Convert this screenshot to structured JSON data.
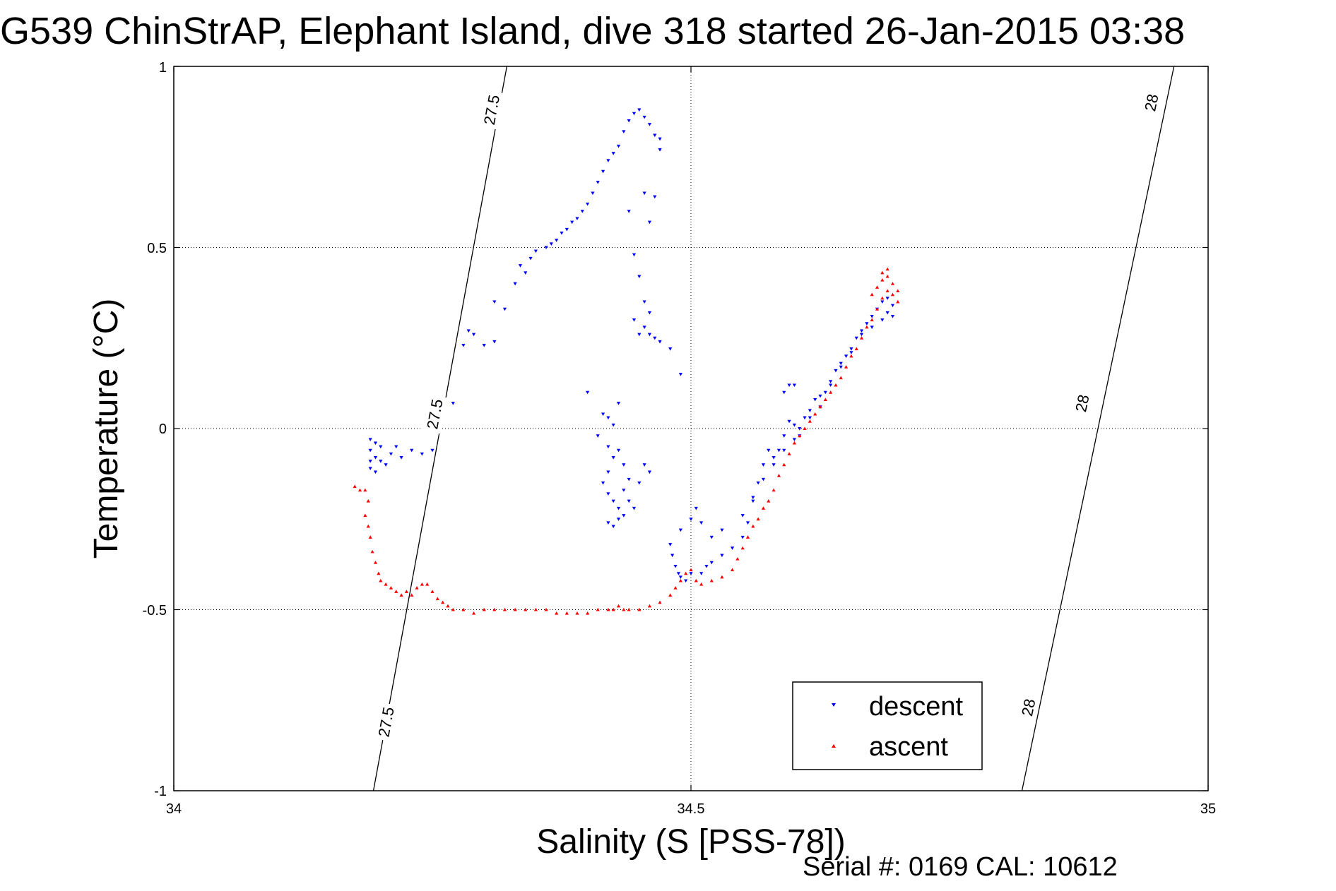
{
  "chart_data": {
    "type": "scatter",
    "title": "G539 ChinStrAP, Elephant Island, dive 318 started 26-Jan-2015 03:38",
    "xlabel": "Salinity (S [PSS-78])",
    "ylabel": "Temperature (°C)",
    "xlim": [
      34,
      35
    ],
    "ylim": [
      -1,
      1
    ],
    "xticks": [
      "34",
      "34.5",
      "35"
    ],
    "yticks": [
      "-1",
      "-0.5",
      "0",
      "0.5",
      "1"
    ],
    "grid": true,
    "legend_position": "bottom-right",
    "footer": "Serial #: 0169 CAL: 10612",
    "isopycnals": [
      {
        "label": "27.5",
        "color": "#000000",
        "line": [
          [
            34.193,
            -1.0
          ],
          [
            34.322,
            1.0
          ]
        ]
      },
      {
        "label": "28",
        "color": "#000000",
        "line": [
          [
            34.82,
            -1.0
          ],
          [
            34.967,
            1.0
          ]
        ]
      }
    ],
    "isopycnal_label_positions": [
      {
        "label": "27.5",
        "x": 34.307,
        "y": 0.88
      },
      {
        "label": "27.5",
        "x": 34.252,
        "y": 0.04
      },
      {
        "label": "27.5",
        "x": 34.205,
        "y": -0.81
      },
      {
        "label": "28",
        "x": 34.945,
        "y": 0.9
      },
      {
        "label": "28",
        "x": 34.878,
        "y": 0.07
      },
      {
        "label": "28",
        "x": 34.826,
        "y": -0.77
      }
    ],
    "series": [
      {
        "name": "descent",
        "color": "#0000ff",
        "marker": "triangle-down",
        "points": [
          [
            34.19,
            -0.03
          ],
          [
            34.19,
            -0.06
          ],
          [
            34.19,
            -0.09
          ],
          [
            34.19,
            -0.11
          ],
          [
            34.195,
            -0.04
          ],
          [
            34.195,
            -0.08
          ],
          [
            34.195,
            -0.12
          ],
          [
            34.2,
            -0.05
          ],
          [
            34.2,
            -0.09
          ],
          [
            34.205,
            -0.1
          ],
          [
            34.21,
            -0.07
          ],
          [
            34.215,
            -0.05
          ],
          [
            34.22,
            -0.08
          ],
          [
            34.23,
            -0.06
          ],
          [
            34.24,
            -0.07
          ],
          [
            34.25,
            -0.06
          ],
          [
            34.27,
            0.07
          ],
          [
            34.28,
            0.23
          ],
          [
            34.285,
            0.27
          ],
          [
            34.29,
            0.26
          ],
          [
            34.3,
            0.23
          ],
          [
            34.31,
            0.24
          ],
          [
            34.31,
            0.35
          ],
          [
            34.32,
            0.33
          ],
          [
            34.33,
            0.4
          ],
          [
            34.335,
            0.45
          ],
          [
            34.34,
            0.43
          ],
          [
            34.345,
            0.47
          ],
          [
            34.35,
            0.49
          ],
          [
            34.36,
            0.5
          ],
          [
            34.365,
            0.51
          ],
          [
            34.37,
            0.52
          ],
          [
            34.375,
            0.54
          ],
          [
            34.38,
            0.55
          ],
          [
            34.385,
            0.57
          ],
          [
            34.39,
            0.58
          ],
          [
            34.395,
            0.6
          ],
          [
            34.4,
            0.62
          ],
          [
            34.405,
            0.65
          ],
          [
            34.41,
            0.68
          ],
          [
            34.415,
            0.71
          ],
          [
            34.42,
            0.74
          ],
          [
            34.425,
            0.76
          ],
          [
            34.43,
            0.78
          ],
          [
            34.435,
            0.82
          ],
          [
            34.44,
            0.85
          ],
          [
            34.445,
            0.87
          ],
          [
            34.45,
            0.88
          ],
          [
            34.455,
            0.86
          ],
          [
            34.46,
            0.84
          ],
          [
            34.465,
            0.81
          ],
          [
            34.47,
            0.8
          ],
          [
            34.47,
            0.77
          ],
          [
            34.465,
            0.64
          ],
          [
            34.455,
            0.65
          ],
          [
            34.46,
            0.57
          ],
          [
            34.44,
            0.6
          ],
          [
            34.445,
            0.48
          ],
          [
            34.45,
            0.42
          ],
          [
            34.455,
            0.35
          ],
          [
            34.46,
            0.32
          ],
          [
            34.445,
            0.3
          ],
          [
            34.45,
            0.26
          ],
          [
            34.455,
            0.28
          ],
          [
            34.46,
            0.26
          ],
          [
            34.465,
            0.25
          ],
          [
            34.47,
            0.24
          ],
          [
            34.48,
            0.22
          ],
          [
            34.49,
            0.15
          ],
          [
            34.4,
            0.1
          ],
          [
            34.41,
            -0.02
          ],
          [
            34.415,
            0.04
          ],
          [
            34.42,
            0.03
          ],
          [
            34.425,
            0.01
          ],
          [
            34.43,
            0.07
          ],
          [
            34.42,
            -0.05
          ],
          [
            34.425,
            -0.08
          ],
          [
            34.43,
            -0.06
          ],
          [
            34.435,
            -0.1
          ],
          [
            34.42,
            -0.12
          ],
          [
            34.415,
            -0.15
          ],
          [
            34.42,
            -0.18
          ],
          [
            34.425,
            -0.2
          ],
          [
            34.43,
            -0.22
          ],
          [
            34.435,
            -0.17
          ],
          [
            34.44,
            -0.14
          ],
          [
            34.44,
            -0.2
          ],
          [
            34.445,
            -0.22
          ],
          [
            34.43,
            -0.25
          ],
          [
            34.425,
            -0.27
          ],
          [
            34.42,
            -0.26
          ],
          [
            34.435,
            -0.24
          ],
          [
            34.45,
            -0.15
          ],
          [
            34.455,
            -0.1
          ],
          [
            34.46,
            -0.12
          ],
          [
            34.48,
            -0.32
          ],
          [
            34.482,
            -0.35
          ],
          [
            34.485,
            -0.38
          ],
          [
            34.488,
            -0.4
          ],
          [
            34.49,
            -0.41
          ],
          [
            34.495,
            -0.42
          ],
          [
            34.5,
            -0.4
          ],
          [
            34.49,
            -0.28
          ],
          [
            34.5,
            -0.25
          ],
          [
            34.505,
            -0.22
          ],
          [
            34.51,
            -0.26
          ],
          [
            34.52,
            -0.3
          ],
          [
            34.53,
            -0.28
          ],
          [
            34.51,
            -0.4
          ],
          [
            34.515,
            -0.38
          ],
          [
            34.52,
            -0.37
          ],
          [
            34.53,
            -0.35
          ],
          [
            34.54,
            -0.33
          ],
          [
            34.55,
            -0.3
          ],
          [
            34.555,
            -0.26
          ],
          [
            34.56,
            -0.2
          ],
          [
            34.565,
            -0.15
          ],
          [
            34.57,
            -0.1
          ],
          [
            34.575,
            -0.06
          ],
          [
            34.58,
            -0.08
          ],
          [
            34.585,
            -0.06
          ],
          [
            34.59,
            -0.02
          ],
          [
            34.595,
            0.02
          ],
          [
            34.6,
            0.01
          ],
          [
            34.605,
            -0.02
          ],
          [
            34.61,
            0.03
          ],
          [
            34.615,
            0.05
          ],
          [
            34.59,
            0.1
          ],
          [
            34.595,
            0.12
          ],
          [
            34.6,
            0.12
          ],
          [
            34.62,
            0.08
          ],
          [
            34.625,
            0.09
          ],
          [
            34.63,
            0.1
          ],
          [
            34.635,
            0.13
          ],
          [
            34.64,
            0.16
          ],
          [
            34.645,
            0.18
          ],
          [
            34.65,
            0.2
          ],
          [
            34.655,
            0.22
          ],
          [
            34.66,
            0.25
          ],
          [
            34.665,
            0.27
          ],
          [
            34.67,
            0.29
          ],
          [
            34.675,
            0.31
          ],
          [
            34.68,
            0.33
          ],
          [
            34.685,
            0.35
          ],
          [
            34.69,
            0.36
          ],
          [
            34.695,
            0.34
          ],
          [
            34.69,
            0.32
          ],
          [
            34.695,
            0.31
          ],
          [
            34.685,
            0.3
          ],
          [
            34.675,
            0.28
          ],
          [
            34.665,
            0.26
          ],
          [
            34.655,
            0.21
          ],
          [
            34.645,
            0.17
          ],
          [
            34.635,
            0.12
          ],
          [
            34.625,
            0.06
          ],
          [
            34.615,
            0.03
          ],
          [
            34.605,
            0.0
          ],
          [
            34.6,
            -0.03
          ],
          [
            34.59,
            -0.06
          ],
          [
            34.58,
            -0.1
          ],
          [
            34.57,
            -0.14
          ],
          [
            34.56,
            -0.19
          ],
          [
            34.55,
            -0.24
          ]
        ]
      },
      {
        "name": "ascent",
        "color": "#ff0000",
        "marker": "triangle-up",
        "points": [
          [
            34.175,
            -0.16
          ],
          [
            34.18,
            -0.17
          ],
          [
            34.185,
            -0.17
          ],
          [
            34.188,
            -0.2
          ],
          [
            34.185,
            -0.24
          ],
          [
            34.188,
            -0.27
          ],
          [
            34.19,
            -0.3
          ],
          [
            34.192,
            -0.34
          ],
          [
            34.195,
            -0.37
          ],
          [
            34.198,
            -0.4
          ],
          [
            34.2,
            -0.42
          ],
          [
            34.205,
            -0.43
          ],
          [
            34.21,
            -0.44
          ],
          [
            34.215,
            -0.45
          ],
          [
            34.22,
            -0.46
          ],
          [
            34.225,
            -0.45
          ],
          [
            34.23,
            -0.46
          ],
          [
            34.235,
            -0.44
          ],
          [
            34.24,
            -0.43
          ],
          [
            34.245,
            -0.43
          ],
          [
            34.25,
            -0.45
          ],
          [
            34.255,
            -0.47
          ],
          [
            34.26,
            -0.48
          ],
          [
            34.265,
            -0.49
          ],
          [
            34.27,
            -0.5
          ],
          [
            34.28,
            -0.5
          ],
          [
            34.29,
            -0.51
          ],
          [
            34.3,
            -0.5
          ],
          [
            34.31,
            -0.5
          ],
          [
            34.32,
            -0.5
          ],
          [
            34.33,
            -0.5
          ],
          [
            34.34,
            -0.5
          ],
          [
            34.35,
            -0.5
          ],
          [
            34.36,
            -0.5
          ],
          [
            34.37,
            -0.51
          ],
          [
            34.38,
            -0.51
          ],
          [
            34.39,
            -0.51
          ],
          [
            34.4,
            -0.51
          ],
          [
            34.41,
            -0.5
          ],
          [
            34.42,
            -0.5
          ],
          [
            34.425,
            -0.5
          ],
          [
            34.43,
            -0.49
          ],
          [
            34.435,
            -0.5
          ],
          [
            34.44,
            -0.5
          ],
          [
            34.45,
            -0.5
          ],
          [
            34.46,
            -0.49
          ],
          [
            34.47,
            -0.48
          ],
          [
            34.48,
            -0.46
          ],
          [
            34.485,
            -0.44
          ],
          [
            34.49,
            -0.42
          ],
          [
            34.495,
            -0.4
          ],
          [
            34.5,
            -0.39
          ],
          [
            34.505,
            -0.42
          ],
          [
            34.51,
            -0.43
          ],
          [
            34.52,
            -0.42
          ],
          [
            34.53,
            -0.41
          ],
          [
            34.54,
            -0.39
          ],
          [
            34.545,
            -0.36
          ],
          [
            34.55,
            -0.33
          ],
          [
            34.555,
            -0.3
          ],
          [
            34.56,
            -0.27
          ],
          [
            34.565,
            -0.25
          ],
          [
            34.57,
            -0.22
          ],
          [
            34.575,
            -0.2
          ],
          [
            34.58,
            -0.17
          ],
          [
            34.585,
            -0.13
          ],
          [
            34.59,
            -0.1
          ],
          [
            34.595,
            -0.07
          ],
          [
            34.6,
            -0.04
          ],
          [
            34.605,
            -0.02
          ],
          [
            34.61,
            0.0
          ],
          [
            34.615,
            0.02
          ],
          [
            34.62,
            0.04
          ],
          [
            34.625,
            0.06
          ],
          [
            34.63,
            0.08
          ],
          [
            34.635,
            0.1
          ],
          [
            34.64,
            0.12
          ],
          [
            34.645,
            0.14
          ],
          [
            34.65,
            0.17
          ],
          [
            34.655,
            0.2
          ],
          [
            34.66,
            0.22
          ],
          [
            34.665,
            0.25
          ],
          [
            34.67,
            0.28
          ],
          [
            34.675,
            0.3
          ],
          [
            34.68,
            0.33
          ],
          [
            34.685,
            0.36
          ],
          [
            34.69,
            0.38
          ],
          [
            34.695,
            0.4
          ],
          [
            34.69,
            0.42
          ],
          [
            34.685,
            0.41
          ],
          [
            34.68,
            0.39
          ],
          [
            34.675,
            0.37
          ],
          [
            34.685,
            0.43
          ],
          [
            34.69,
            0.44
          ],
          [
            34.695,
            0.37
          ],
          [
            34.7,
            0.35
          ],
          [
            34.7,
            0.38
          ]
        ]
      }
    ]
  }
}
